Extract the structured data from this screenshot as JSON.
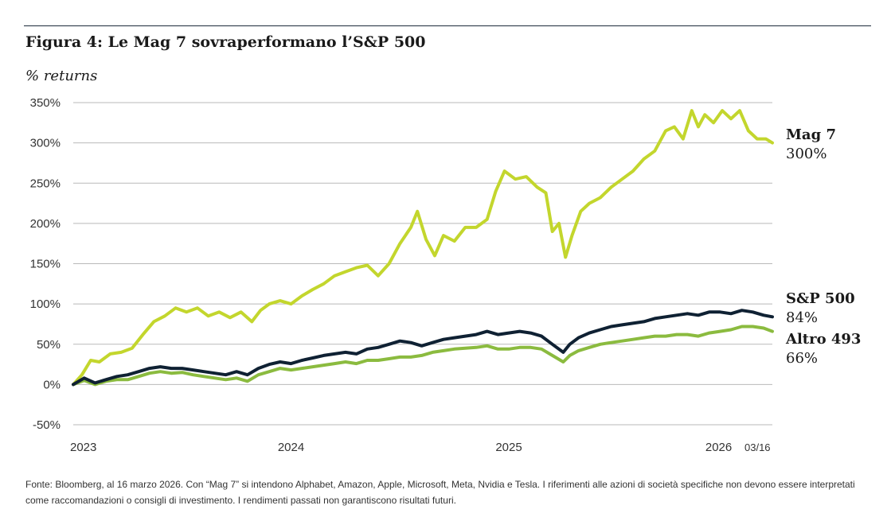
{
  "title": "Figura 4: Le Mag 7 sovraperformano l’S&P 500",
  "subtitle": "% returns",
  "source": "Fonte: Bloomberg, al 16 marzo 2026. Con “Mag 7” si intendono Alphabet, Amazon, Apple, Microsoft, Meta, Nvidia e Tesla. I riferimenti alle azioni di società specifiche non devono essere interpretati come raccomandazioni o consigli di investimento. I rendimenti passati non garantiscono risultati futuri.",
  "chart_data": {
    "type": "line",
    "title": "Figura 4: Le Mag 7 sovraperformano l’S&P 500",
    "ylabel": "% returns",
    "ylim": [
      -50,
      350
    ],
    "yticks": [
      350,
      300,
      250,
      200,
      150,
      100,
      50,
      0,
      -50
    ],
    "ytick_labels": [
      "350%",
      "300%",
      "250%",
      "200%",
      "150%",
      "100%",
      "50%",
      "0%",
      "-50%"
    ],
    "xlim": [
      2023.0,
      2026.21
    ],
    "xticks": [
      {
        "x": 2023.0,
        "label": "2023"
      },
      {
        "x": 2024.0,
        "label": "2024"
      },
      {
        "x": 2025.0,
        "label": "2025"
      },
      {
        "x": 2026.0,
        "label": "2026"
      }
    ],
    "end_date_label": "03/16",
    "grid": true,
    "series": [
      {
        "name": "Mag 7",
        "end_label": "300%",
        "color": "#c3d62d",
        "points": [
          [
            2023.0,
            0
          ],
          [
            2023.04,
            12
          ],
          [
            2023.08,
            30
          ],
          [
            2023.12,
            28
          ],
          [
            2023.17,
            38
          ],
          [
            2023.22,
            40
          ],
          [
            2023.27,
            45
          ],
          [
            2023.32,
            62
          ],
          [
            2023.37,
            78
          ],
          [
            2023.42,
            85
          ],
          [
            2023.47,
            95
          ],
          [
            2023.52,
            90
          ],
          [
            2023.57,
            95
          ],
          [
            2023.62,
            85
          ],
          [
            2023.67,
            90
          ],
          [
            2023.72,
            83
          ],
          [
            2023.77,
            90
          ],
          [
            2023.82,
            78
          ],
          [
            2023.86,
            92
          ],
          [
            2023.9,
            100
          ],
          [
            2023.95,
            104
          ],
          [
            2024.0,
            100
          ],
          [
            2024.05,
            110
          ],
          [
            2024.1,
            118
          ],
          [
            2024.15,
            125
          ],
          [
            2024.2,
            135
          ],
          [
            2024.25,
            140
          ],
          [
            2024.3,
            145
          ],
          [
            2024.35,
            148
          ],
          [
            2024.4,
            135
          ],
          [
            2024.45,
            150
          ],
          [
            2024.5,
            175
          ],
          [
            2024.55,
            195
          ],
          [
            2024.58,
            215
          ],
          [
            2024.62,
            180
          ],
          [
            2024.66,
            160
          ],
          [
            2024.7,
            185
          ],
          [
            2024.75,
            178
          ],
          [
            2024.8,
            195
          ],
          [
            2024.85,
            195
          ],
          [
            2024.9,
            205
          ],
          [
            2024.94,
            240
          ],
          [
            2024.98,
            265
          ],
          [
            2025.03,
            255
          ],
          [
            2025.08,
            258
          ],
          [
            2025.13,
            245
          ],
          [
            2025.17,
            238
          ],
          [
            2025.2,
            190
          ],
          [
            2025.23,
            200
          ],
          [
            2025.26,
            158
          ],
          [
            2025.29,
            185
          ],
          [
            2025.33,
            215
          ],
          [
            2025.37,
            225
          ],
          [
            2025.42,
            232
          ],
          [
            2025.47,
            245
          ],
          [
            2025.52,
            255
          ],
          [
            2025.57,
            265
          ],
          [
            2025.62,
            280
          ],
          [
            2025.67,
            290
          ],
          [
            2025.72,
            315
          ],
          [
            2025.76,
            320
          ],
          [
            2025.8,
            305
          ],
          [
            2025.84,
            340
          ],
          [
            2025.87,
            320
          ],
          [
            2025.9,
            335
          ],
          [
            2025.94,
            325
          ],
          [
            2025.98,
            340
          ],
          [
            2026.02,
            330
          ],
          [
            2026.06,
            340
          ],
          [
            2026.1,
            315
          ],
          [
            2026.14,
            305
          ],
          [
            2026.18,
            305
          ],
          [
            2026.21,
            300
          ]
        ]
      },
      {
        "name": "S&P 500",
        "end_label": "84%",
        "color": "#0f2133",
        "points": [
          [
            2023.0,
            0
          ],
          [
            2023.05,
            8
          ],
          [
            2023.1,
            2
          ],
          [
            2023.15,
            6
          ],
          [
            2023.2,
            10
          ],
          [
            2023.25,
            12
          ],
          [
            2023.3,
            16
          ],
          [
            2023.35,
            20
          ],
          [
            2023.4,
            22
          ],
          [
            2023.45,
            20
          ],
          [
            2023.5,
            20
          ],
          [
            2023.55,
            18
          ],
          [
            2023.6,
            16
          ],
          [
            2023.65,
            14
          ],
          [
            2023.7,
            12
          ],
          [
            2023.75,
            16
          ],
          [
            2023.8,
            12
          ],
          [
            2023.85,
            20
          ],
          [
            2023.9,
            25
          ],
          [
            2023.95,
            28
          ],
          [
            2024.0,
            26
          ],
          [
            2024.05,
            30
          ],
          [
            2024.1,
            33
          ],
          [
            2024.15,
            36
          ],
          [
            2024.2,
            38
          ],
          [
            2024.25,
            40
          ],
          [
            2024.3,
            38
          ],
          [
            2024.35,
            44
          ],
          [
            2024.4,
            46
          ],
          [
            2024.45,
            50
          ],
          [
            2024.5,
            54
          ],
          [
            2024.55,
            52
          ],
          [
            2024.6,
            48
          ],
          [
            2024.65,
            52
          ],
          [
            2024.7,
            56
          ],
          [
            2024.75,
            58
          ],
          [
            2024.8,
            60
          ],
          [
            2024.85,
            62
          ],
          [
            2024.9,
            66
          ],
          [
            2024.95,
            62
          ],
          [
            2025.0,
            64
          ],
          [
            2025.05,
            66
          ],
          [
            2025.1,
            64
          ],
          [
            2025.15,
            60
          ],
          [
            2025.2,
            50
          ],
          [
            2025.25,
            40
          ],
          [
            2025.28,
            50
          ],
          [
            2025.32,
            58
          ],
          [
            2025.37,
            64
          ],
          [
            2025.42,
            68
          ],
          [
            2025.47,
            72
          ],
          [
            2025.52,
            74
          ],
          [
            2025.57,
            76
          ],
          [
            2025.62,
            78
          ],
          [
            2025.67,
            82
          ],
          [
            2025.72,
            84
          ],
          [
            2025.77,
            86
          ],
          [
            2025.82,
            88
          ],
          [
            2025.87,
            86
          ],
          [
            2025.92,
            90
          ],
          [
            2025.97,
            90
          ],
          [
            2026.02,
            88
          ],
          [
            2026.07,
            92
          ],
          [
            2026.12,
            90
          ],
          [
            2026.17,
            86
          ],
          [
            2026.21,
            84
          ]
        ]
      },
      {
        "name": "Altro 493",
        "end_label": "66%",
        "color": "#8bbb3f",
        "points": [
          [
            2023.0,
            0
          ],
          [
            2023.05,
            5
          ],
          [
            2023.1,
            0
          ],
          [
            2023.15,
            4
          ],
          [
            2023.2,
            6
          ],
          [
            2023.25,
            6
          ],
          [
            2023.3,
            10
          ],
          [
            2023.35,
            14
          ],
          [
            2023.4,
            16
          ],
          [
            2023.45,
            14
          ],
          [
            2023.5,
            15
          ],
          [
            2023.55,
            12
          ],
          [
            2023.6,
            10
          ],
          [
            2023.65,
            8
          ],
          [
            2023.7,
            6
          ],
          [
            2023.75,
            8
          ],
          [
            2023.8,
            4
          ],
          [
            2023.85,
            12
          ],
          [
            2023.9,
            16
          ],
          [
            2023.95,
            20
          ],
          [
            2024.0,
            18
          ],
          [
            2024.05,
            20
          ],
          [
            2024.1,
            22
          ],
          [
            2024.15,
            24
          ],
          [
            2024.2,
            26
          ],
          [
            2024.25,
            28
          ],
          [
            2024.3,
            26
          ],
          [
            2024.35,
            30
          ],
          [
            2024.4,
            30
          ],
          [
            2024.45,
            32
          ],
          [
            2024.5,
            34
          ],
          [
            2024.55,
            34
          ],
          [
            2024.6,
            36
          ],
          [
            2024.65,
            40
          ],
          [
            2024.7,
            42
          ],
          [
            2024.75,
            44
          ],
          [
            2024.8,
            45
          ],
          [
            2024.85,
            46
          ],
          [
            2024.9,
            48
          ],
          [
            2024.95,
            44
          ],
          [
            2025.0,
            44
          ],
          [
            2025.05,
            46
          ],
          [
            2025.1,
            46
          ],
          [
            2025.15,
            44
          ],
          [
            2025.2,
            36
          ],
          [
            2025.25,
            28
          ],
          [
            2025.28,
            36
          ],
          [
            2025.32,
            42
          ],
          [
            2025.37,
            46
          ],
          [
            2025.42,
            50
          ],
          [
            2025.47,
            52
          ],
          [
            2025.52,
            54
          ],
          [
            2025.57,
            56
          ],
          [
            2025.62,
            58
          ],
          [
            2025.67,
            60
          ],
          [
            2025.72,
            60
          ],
          [
            2025.77,
            62
          ],
          [
            2025.82,
            62
          ],
          [
            2025.87,
            60
          ],
          [
            2025.92,
            64
          ],
          [
            2025.97,
            66
          ],
          [
            2026.02,
            68
          ],
          [
            2026.07,
            72
          ],
          [
            2026.12,
            72
          ],
          [
            2026.17,
            70
          ],
          [
            2026.21,
            66
          ]
        ]
      }
    ]
  }
}
